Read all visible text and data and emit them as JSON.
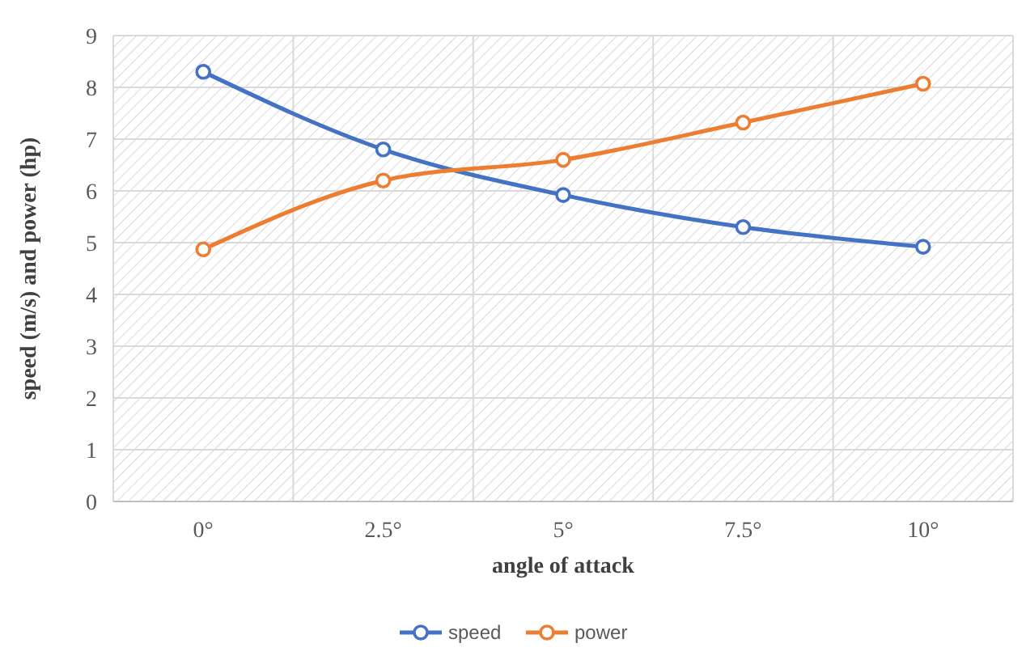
{
  "chart_data": {
    "type": "line",
    "xlabel": "angle of attack",
    "ylabel": "speed (m/s) and power (hp)",
    "categories": [
      "0°",
      "2.5°",
      "5°",
      "7.5°",
      "10°"
    ],
    "series": [
      {
        "name": "speed",
        "color": "#4472c4",
        "values": [
          8.3,
          6.8,
          5.92,
          5.3,
          4.92
        ]
      },
      {
        "name": "power",
        "color": "#ed7d31",
        "values": [
          4.87,
          6.2,
          6.6,
          7.32,
          8.07
        ]
      }
    ],
    "ylim": [
      0,
      9
    ],
    "yticks": [
      0,
      1,
      2,
      3,
      4,
      5,
      6,
      7,
      8,
      9
    ],
    "grid": true,
    "legend": "bottom",
    "marker": "circle",
    "line_style": "solid"
  }
}
